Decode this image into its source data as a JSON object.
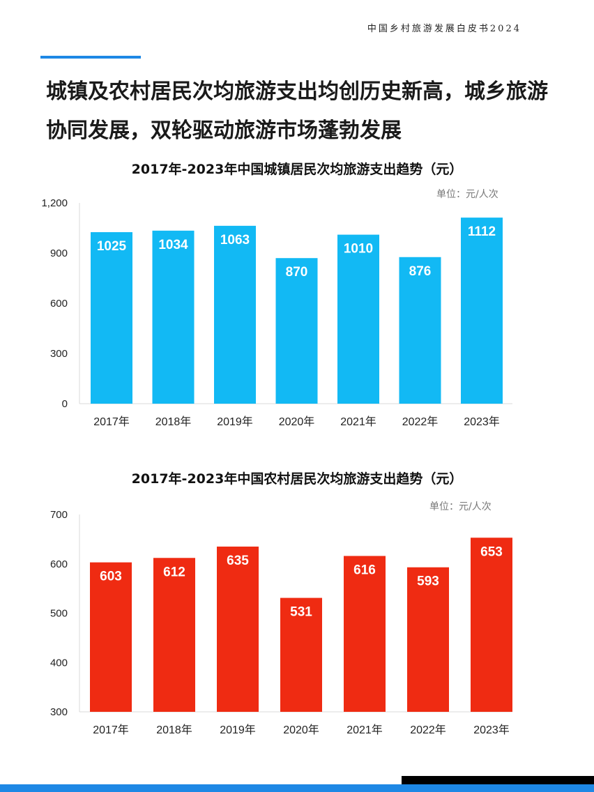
{
  "header": {
    "report_title": "中国乡村旅游发展白皮书2024"
  },
  "headline": "城镇及农村居民次均旅游支出均创历史新高，城乡旅游协同发展，双轮驱动旅游市场蓬勃发展",
  "chart_data": [
    {
      "type": "bar",
      "title": "2017年-2023年中国城镇居民次均旅游支出趋势（元）",
      "unit": "单位：元/人次",
      "categories": [
        "2017年",
        "2018年",
        "2019年",
        "2020年",
        "2021年",
        "2022年",
        "2023年"
      ],
      "values": [
        1025,
        1034,
        1063,
        870,
        1010,
        876,
        1112
      ],
      "value_labels": [
        "1025",
        "1034",
        "1063",
        "870",
        "1010",
        "876",
        "1112"
      ],
      "ylim": [
        0,
        1200
      ],
      "yticks": [
        0,
        300,
        600,
        900,
        1200
      ],
      "ytick_labels": [
        "0",
        "300",
        "600",
        "900",
        "1,200"
      ],
      "color": "#12b9f4",
      "grid": false
    },
    {
      "type": "bar",
      "title": "2017年-2023年中国农村居民次均旅游支出趋势（元）",
      "unit": "单位：元/人次",
      "categories": [
        "2017年",
        "2018年",
        "2019年",
        "2020年",
        "2021年",
        "2022年",
        "2023年"
      ],
      "values": [
        603,
        612,
        635,
        531,
        616,
        593,
        653
      ],
      "value_labels": [
        "603",
        "612",
        "635",
        "531",
        "616",
        "593",
        "653"
      ],
      "ylim": [
        300,
        700
      ],
      "yticks": [
        300,
        400,
        500,
        600,
        700
      ],
      "ytick_labels": [
        "300",
        "400",
        "500",
        "600",
        "700"
      ],
      "color": "#ef2b12",
      "grid": false
    }
  ]
}
